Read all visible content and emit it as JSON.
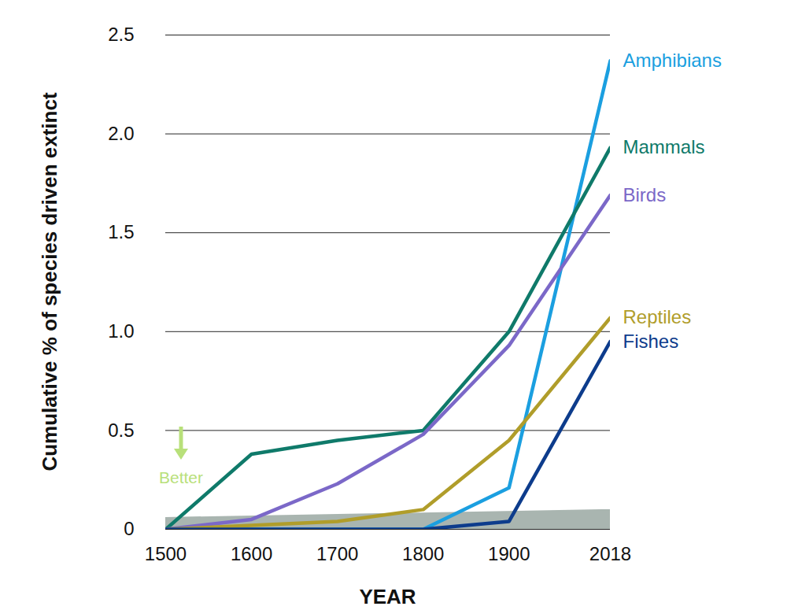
{
  "chart_data": {
    "type": "line",
    "x_label": "YEAR",
    "y_label": "Cumulative % of species driven extinct",
    "x": [
      1500,
      1600,
      1700,
      1800,
      1900,
      2018
    ],
    "xlim": [
      1500,
      2018
    ],
    "xticks": [
      1500,
      1600,
      1700,
      1800,
      1900,
      2018
    ],
    "ylim": [
      0,
      2.5
    ],
    "yticks": [
      0,
      0.5,
      {
        "value": 1,
        "label": "1.0"
      },
      1.5,
      {
        "value": 2,
        "label": "2.0"
      },
      2.5
    ],
    "grid": true,
    "series": [
      {
        "name": "Amphibians",
        "color": "#1b9fe0",
        "values": [
          0,
          0,
          0,
          0,
          0.21,
          2.37
        ]
      },
      {
        "name": "Mammals",
        "color": "#0f7a6a",
        "values": [
          0,
          0.38,
          0.45,
          0.5,
          1.0,
          1.93
        ]
      },
      {
        "name": "Birds",
        "color": "#7b68c8",
        "values": [
          0,
          0.05,
          0.23,
          0.48,
          0.93,
          1.69
        ]
      },
      {
        "name": "Reptiles",
        "color": "#b09d2a",
        "values": [
          0,
          0.02,
          0.04,
          0.1,
          0.45,
          1.07
        ]
      },
      {
        "name": "Fishes",
        "color": "#0d3c8c",
        "values": [
          0,
          0,
          0,
          0,
          0.04,
          0.95
        ]
      }
    ],
    "band": {
      "x": [
        1500,
        2018
      ],
      "values": [
        0.06,
        0.1
      ],
      "color": "#8c9c95"
    },
    "annotations": [
      {
        "text": "Better",
        "color": "#b8e07a"
      }
    ]
  }
}
